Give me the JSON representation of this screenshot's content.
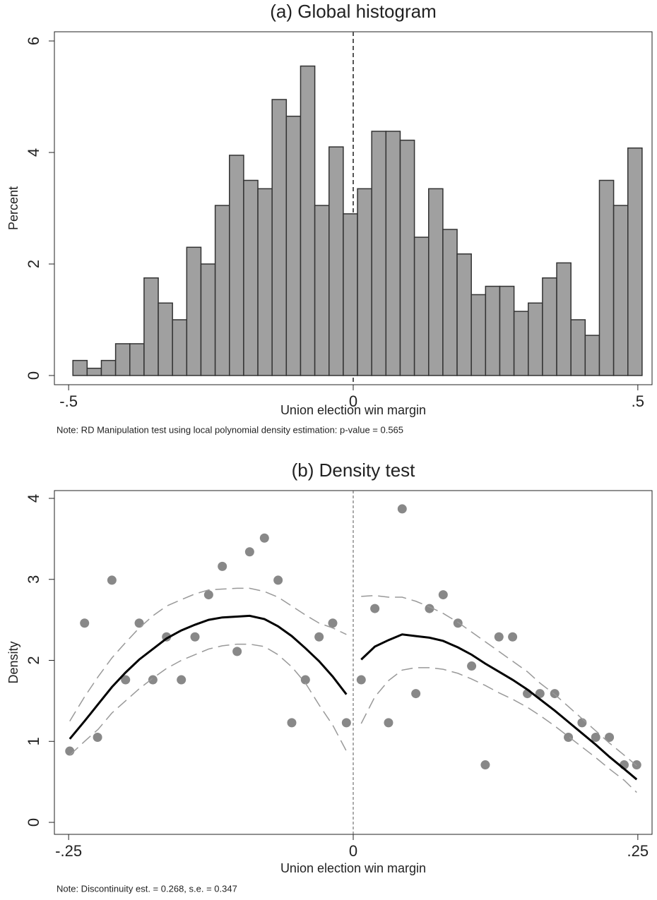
{
  "chart_data": [
    {
      "type": "histogram",
      "title": "(a) Global histogram",
      "x_label": "Union election win margin",
      "y_label": "Percent",
      "note": "Note: RD Manipulation test using local polynomial density estimation: p-value = 0.565",
      "bins": [
        -0.4925,
        -0.4675,
        -0.4425,
        -0.4175,
        -0.3925,
        -0.3675,
        -0.3425,
        -0.3175,
        -0.2925,
        -0.2675,
        -0.2425,
        -0.2175,
        -0.1925,
        -0.1675,
        -0.1425,
        -0.1175,
        -0.0925,
        -0.0675,
        -0.0425,
        -0.0175,
        0.0075,
        0.0325,
        0.0575,
        0.0825,
        0.1075,
        0.1325,
        0.1575,
        0.1825,
        0.2075,
        0.2325,
        0.2575,
        0.2825,
        0.3075,
        0.3325,
        0.3575,
        0.3825,
        0.4075,
        0.4325,
        0.4575,
        0.4825,
        0.5075
      ],
      "values": [
        0.27,
        0.13,
        0.27,
        0.57,
        0.57,
        1.75,
        1.3,
        1.0,
        2.3,
        2.0,
        3.05,
        3.95,
        3.5,
        3.35,
        4.95,
        4.65,
        5.55,
        3.05,
        4.1,
        2.9,
        3.35,
        4.38,
        4.38,
        4.22,
        2.48,
        3.35,
        2.62,
        2.18,
        1.45,
        1.6,
        1.6,
        1.15,
        1.3,
        1.75,
        2.02,
        1.0,
        0.72,
        3.5,
        3.05,
        4.08
      ],
      "color": "#a0a0a0",
      "vline": 0,
      "xlim": [
        -0.525,
        0.525
      ],
      "xticks": [
        {
          "value": -0.5,
          "label": "-.5"
        },
        0,
        {
          "value": 0.5,
          "label": ".5"
        }
      ],
      "ylim": [
        -0.165,
        6.165
      ],
      "yticks": [
        0,
        2,
        4,
        6
      ]
    },
    {
      "type": "scatter",
      "title": "(b) Density test",
      "x_label": "Union election win margin",
      "y_label": "Density",
      "note": "Note: Discontinuity est. = 0.268, s.e. =  0.347",
      "vline": 0,
      "xlim": [
        -0.2625,
        0.2625
      ],
      "xticks": [
        {
          "value": -0.25,
          "label": "-.25"
        },
        0,
        {
          "value": 0.25,
          "label": ".25"
        }
      ],
      "ylim": [
        -0.148,
        4.096
      ],
      "yticks": [
        0,
        1,
        2,
        3,
        4
      ],
      "series": [
        {
          "style": "dots",
          "color": "#888888",
          "x": [
            -0.249,
            -0.236,
            -0.2246,
            -0.212,
            -0.2,
            -0.188,
            -0.176,
            -0.164,
            -0.151,
            -0.139,
            -0.127,
            -0.115,
            -0.102,
            -0.091,
            -0.078,
            -0.066,
            -0.054,
            -0.042,
            -0.03,
            -0.018,
            -0.006,
            0.007,
            0.019,
            0.031,
            0.043,
            0.055,
            0.067,
            0.079,
            0.092,
            0.104,
            0.116,
            0.128,
            0.14,
            0.153,
            0.164,
            0.177,
            0.189,
            0.201,
            0.213,
            0.225,
            0.238,
            0.249
          ],
          "values": [
            0.88,
            2.46,
            1.05,
            2.99,
            1.76,
            2.46,
            1.76,
            2.29,
            1.76,
            2.29,
            2.81,
            3.16,
            2.11,
            3.34,
            3.51,
            2.99,
            1.23,
            1.76,
            2.29,
            2.46,
            1.23,
            1.76,
            2.64,
            1.23,
            3.87,
            1.59,
            2.64,
            2.81,
            2.46,
            1.93,
            0.71,
            2.29,
            2.29,
            1.59,
            1.59,
            1.59,
            1.05,
            1.23,
            1.05,
            1.05,
            0.71,
            0.71
          ]
        },
        {
          "style": "solid",
          "color": "#000000",
          "x": [
            -0.249,
            -0.236,
            -0.224,
            -0.212,
            -0.2,
            -0.188,
            -0.176,
            -0.164,
            -0.151,
            -0.139,
            -0.127,
            -0.115,
            -0.102,
            -0.091,
            -0.078,
            -0.066,
            -0.054,
            -0.042,
            -0.03,
            -0.018,
            -0.006
          ],
          "values": [
            1.03,
            1.25,
            1.46,
            1.67,
            1.85,
            2.01,
            2.14,
            2.27,
            2.37,
            2.44,
            2.5,
            2.53,
            2.54,
            2.55,
            2.51,
            2.42,
            2.3,
            2.15,
            1.99,
            1.8,
            1.58
          ]
        },
        {
          "style": "dashed",
          "color": "#999999",
          "x": [
            -0.249,
            -0.236,
            -0.224,
            -0.212,
            -0.2,
            -0.188,
            -0.176,
            -0.164,
            -0.151,
            -0.139,
            -0.127,
            -0.115,
            -0.102,
            -0.091,
            -0.078,
            -0.066,
            -0.054,
            -0.042,
            -0.03,
            -0.018,
            -0.006
          ],
          "values": [
            1.25,
            1.55,
            1.8,
            2.03,
            2.22,
            2.4,
            2.55,
            2.67,
            2.75,
            2.82,
            2.87,
            2.88,
            2.89,
            2.89,
            2.85,
            2.78,
            2.67,
            2.56,
            2.46,
            2.4,
            2.32
          ]
        },
        {
          "style": "dashed",
          "color": "#999999",
          "x": [
            -0.249,
            -0.236,
            -0.224,
            -0.212,
            -0.2,
            -0.188,
            -0.176,
            -0.164,
            -0.151,
            -0.139,
            -0.127,
            -0.115,
            -0.102,
            -0.091,
            -0.078,
            -0.066,
            -0.054,
            -0.042,
            -0.03,
            -0.018,
            -0.006
          ],
          "values": [
            0.83,
            1.0,
            1.15,
            1.35,
            1.5,
            1.65,
            1.78,
            1.9,
            2.0,
            2.07,
            2.14,
            2.18,
            2.2,
            2.2,
            2.17,
            2.07,
            1.92,
            1.72,
            1.45,
            1.2,
            0.88
          ]
        },
        {
          "style": "solid",
          "color": "#000000",
          "x": [
            0.007,
            0.019,
            0.031,
            0.043,
            0.055,
            0.067,
            0.079,
            0.092,
            0.104,
            0.116,
            0.128,
            0.14,
            0.153,
            0.164,
            0.177,
            0.189,
            0.201,
            0.213,
            0.225,
            0.238,
            0.249
          ],
          "values": [
            2.01,
            2.17,
            2.25,
            2.32,
            2.3,
            2.28,
            2.24,
            2.16,
            2.07,
            1.96,
            1.86,
            1.76,
            1.64,
            1.52,
            1.38,
            1.24,
            1.1,
            0.96,
            0.81,
            0.66,
            0.53
          ]
        },
        {
          "style": "dashed",
          "color": "#999999",
          "x": [
            0.007,
            0.019,
            0.031,
            0.043,
            0.055,
            0.067,
            0.079,
            0.092,
            0.104,
            0.116,
            0.128,
            0.14,
            0.153,
            0.164,
            0.177,
            0.189,
            0.201,
            0.213,
            0.225,
            0.238,
            0.249
          ],
          "values": [
            2.79,
            2.8,
            2.78,
            2.78,
            2.73,
            2.66,
            2.58,
            2.47,
            2.35,
            2.23,
            2.11,
            1.99,
            1.86,
            1.72,
            1.58,
            1.43,
            1.28,
            1.13,
            0.98,
            0.83,
            0.7
          ]
        },
        {
          "style": "dashed",
          "color": "#999999",
          "x": [
            0.007,
            0.019,
            0.031,
            0.043,
            0.055,
            0.067,
            0.079,
            0.092,
            0.104,
            0.116,
            0.128,
            0.14,
            0.153,
            0.164,
            0.177,
            0.189,
            0.201,
            0.213,
            0.225,
            0.238,
            0.249
          ],
          "values": [
            1.22,
            1.55,
            1.75,
            1.88,
            1.91,
            1.91,
            1.89,
            1.84,
            1.77,
            1.69,
            1.6,
            1.52,
            1.42,
            1.32,
            1.19,
            1.06,
            0.93,
            0.8,
            0.66,
            0.52,
            0.37
          ]
        }
      ]
    }
  ]
}
